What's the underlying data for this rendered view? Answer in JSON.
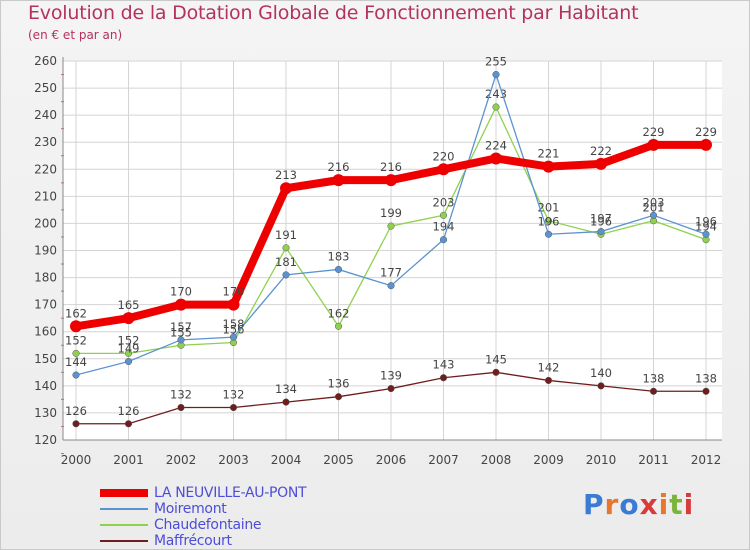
{
  "header": {
    "title": "Evolution de la Dotation Globale de Fonctionnement par Habitant",
    "subtitle": "(en € et par an)"
  },
  "logo": {
    "text": "Proxiti",
    "colors": [
      "#3b7bd4",
      "#e8762d",
      "#3b7bd4",
      "#d93a3a",
      "#e8762d",
      "#7ab43c",
      "#d93a3a"
    ]
  },
  "chart_data": {
    "type": "line",
    "title": "Evolution de la Dotation Globale de Fonctionnement par Habitant",
    "subtitle": "(en € et par an)",
    "xlabel": "",
    "ylabel": "",
    "x": [
      "2000",
      "2001",
      "2002",
      "2003",
      "2004",
      "2005",
      "2006",
      "2007",
      "2008",
      "2009",
      "2010",
      "2011",
      "2012"
    ],
    "ylim": [
      120,
      260
    ],
    "yticks": [
      120,
      130,
      140,
      150,
      160,
      170,
      180,
      190,
      200,
      210,
      220,
      230,
      240,
      250,
      260
    ],
    "grid": true,
    "legend_position": "bottom-left",
    "series": [
      {
        "name": "Maffrécourt",
        "color": "#6e1e1e",
        "thick": false,
        "values": [
          126,
          126,
          132,
          132,
          134,
          136,
          139,
          143,
          145,
          142,
          140,
          138,
          138
        ]
      },
      {
        "name": "Chaudefontaine",
        "color": "#8fd14f",
        "thick": false,
        "values": [
          152,
          152,
          155,
          156,
          191,
          162,
          199,
          203,
          243,
          201,
          196,
          201,
          194
        ]
      },
      {
        "name": "Moiremont",
        "color": "#5b93d0",
        "thick": false,
        "values": [
          144,
          149,
          157,
          158,
          181,
          183,
          177,
          194,
          255,
          196,
          197,
          203,
          196
        ]
      },
      {
        "name": "LA NEUVILLE-AU-PONT",
        "color": "#ee0000",
        "thick": true,
        "values": [
          162,
          165,
          170,
          170,
          213,
          216,
          216,
          220,
          224,
          221,
          222,
          229,
          229
        ]
      }
    ]
  },
  "legend": [
    {
      "label": "LA NEUVILLE-AU-PONT",
      "color": "#ee0000",
      "thick": true
    },
    {
      "label": "Moiremont",
      "color": "#5b93d0",
      "thick": false
    },
    {
      "label": "Chaudefontaine",
      "color": "#8fd14f",
      "thick": false
    },
    {
      "label": "Maffrécourt",
      "color": "#6e1e1e",
      "thick": false
    }
  ]
}
